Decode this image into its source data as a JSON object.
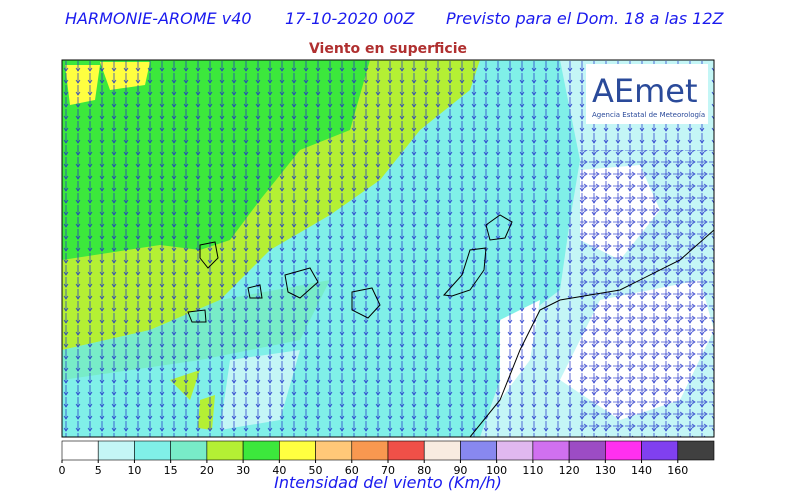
{
  "header": {
    "model": "HARMONIE-AROME v40",
    "run": "17-10-2020 00Z",
    "forecast": "Previsto para el Dom. 18 a las 12Z",
    "subtitle": "Viento en superficie"
  },
  "logo": {
    "name": "AEmet",
    "tagline": "Agencia Estatal de Meteorología"
  },
  "colorbar": {
    "label": "Intensidad del viento (Km/h)",
    "ticks": [
      0,
      5,
      10,
      15,
      20,
      30,
      40,
      50,
      60,
      70,
      80,
      90,
      100,
      110,
      120,
      130,
      140,
      160
    ],
    "colors": [
      "#ffffff",
      "#c4f6f6",
      "#80f0e8",
      "#78ecc8",
      "#b4f034",
      "#3ce83c",
      "#ffff40",
      "#ffc878",
      "#f89850",
      "#f05048",
      "#f8ece0",
      "#8888f0",
      "#e0b8f0",
      "#d070f0",
      "#9c4cc4",
      "#ff30f0",
      "#8040f0",
      "#404040"
    ]
  }
}
